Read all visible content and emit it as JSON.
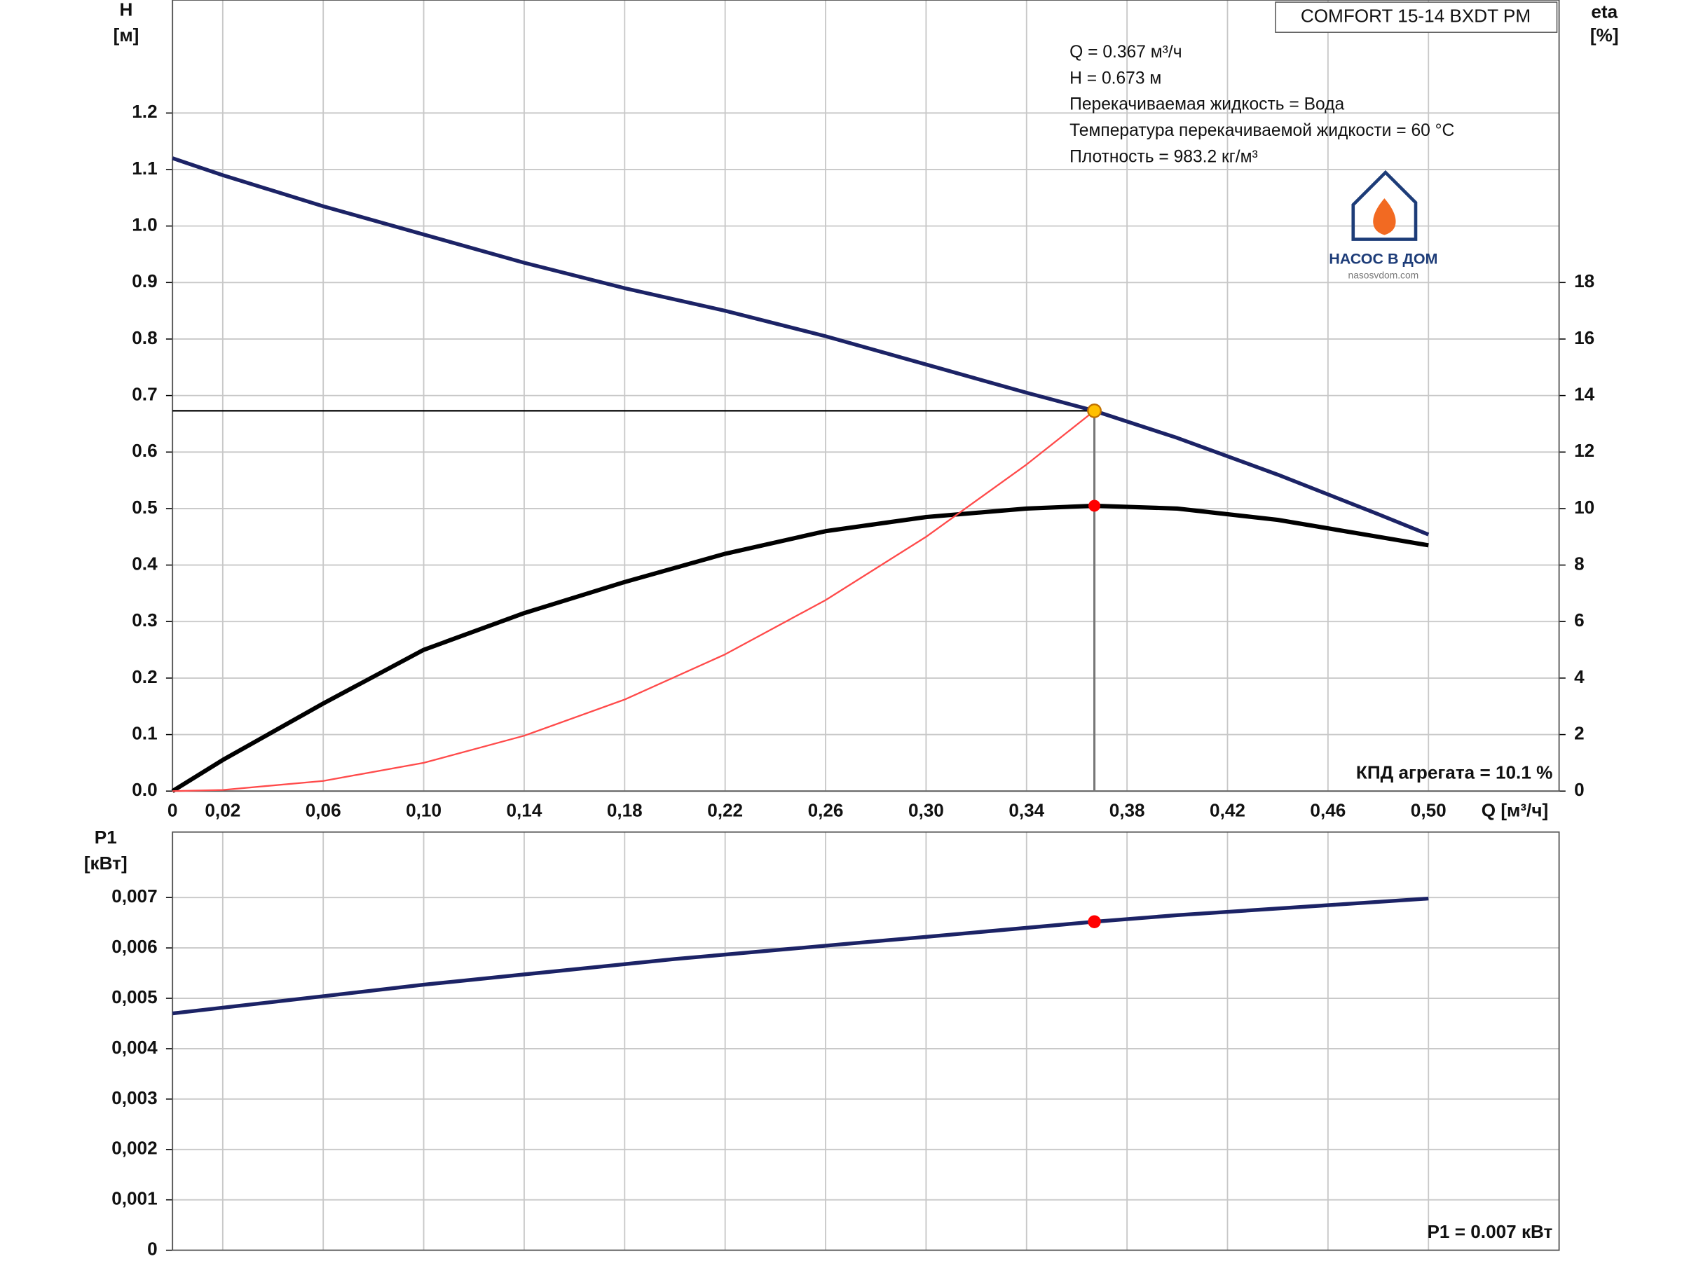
{
  "chart_data": [
    {
      "type": "line",
      "title": "COMFORT 15-14 BXDT PM",
      "info": [
        "Q = 0.367 м³/ч",
        "H = 0.673 м",
        "Перекачиваемая жидкость = Вода",
        "Температура перекачиваемой жидкости = 60 °C",
        "Плотность = 983.2 кг/м³"
      ],
      "annotation": "КПД агрегата = 10.1 %",
      "xlabel": "Q [м³/ч]",
      "ylabel": "H",
      "yunit": "[м]",
      "y2label": "eta",
      "y2unit": "[%]",
      "xlim": [
        0,
        0.552
      ],
      "ylim": [
        0,
        1.4
      ],
      "y2lim": [
        0,
        28
      ],
      "grid": true,
      "xticks": [
        0,
        {
          "value": 0.02,
          "label": "0,02"
        },
        {
          "value": 0.06,
          "label": "0,06"
        },
        {
          "value": 0.1,
          "label": "0,10"
        },
        {
          "value": 0.14,
          "label": "0,14"
        },
        {
          "value": 0.18,
          "label": "0,18"
        },
        {
          "value": 0.22,
          "label": "0,22"
        },
        {
          "value": 0.26,
          "label": "0,26"
        },
        {
          "value": 0.3,
          "label": "0,30"
        },
        {
          "value": 0.34,
          "label": "0,34"
        },
        {
          "value": 0.38,
          "label": "0,38"
        },
        {
          "value": 0.42,
          "label": "0,42"
        },
        {
          "value": 0.46,
          "label": "0,46"
        },
        {
          "value": 0.5,
          "label": "0,50"
        }
      ],
      "yticks": [
        {
          "value": 0,
          "label": "0.0"
        },
        0.1,
        0.2,
        0.3,
        0.4,
        0.5,
        0.6,
        0.7,
        0.8,
        0.9,
        {
          "value": 1,
          "label": "1.0"
        },
        1.1,
        1.2
      ],
      "y2ticks": [
        0,
        2,
        4,
        6,
        8,
        10,
        12,
        14,
        16,
        18
      ],
      "series": [
        {
          "color": "#1c2366",
          "width": 3.5,
          "x": [
            0,
            0.02,
            0.06,
            0.1,
            0.14,
            0.18,
            0.22,
            0.26,
            0.3,
            0.34,
            0.367,
            0.4,
            0.44,
            0.48,
            0.5
          ],
          "values": [
            1.12,
            1.09,
            1.035,
            0.985,
            0.935,
            0.89,
            0.85,
            0.805,
            0.755,
            0.705,
            0.673,
            0.625,
            0.56,
            0.49,
            0.454
          ]
        },
        {
          "color": "#000000",
          "width": 4,
          "axis": "y2",
          "x": [
            0,
            0.02,
            0.06,
            0.1,
            0.14,
            0.18,
            0.22,
            0.26,
            0.3,
            0.34,
            0.367,
            0.4,
            0.44,
            0.48,
            0.5
          ],
          "values": [
            0,
            1.1,
            3.1,
            5.0,
            6.3,
            7.4,
            8.4,
            9.2,
            9.7,
            10.0,
            10.1,
            10.0,
            9.6,
            9.0,
            8.7
          ]
        },
        {
          "color": "#ff4a4a",
          "width": 1.5,
          "x": [
            0,
            0.02,
            0.06,
            0.1,
            0.14,
            0.18,
            0.22,
            0.26,
            0.3,
            0.34,
            0.367
          ],
          "values": [
            0,
            0.002,
            0.018,
            0.05,
            0.098,
            0.162,
            0.242,
            0.338,
            0.45,
            0.578,
            0.673
          ]
        }
      ],
      "operating_point": {
        "x": 0.367,
        "y": 0.673,
        "y2": 10.1,
        "color": "#ffc000",
        "eta_color": "#ff0000"
      }
    },
    {
      "type": "line",
      "annotation": "P1 = 0.007 кВт",
      "ylabel": "P1",
      "yunit": "[кВт]",
      "xlim": [
        0,
        0.552
      ],
      "ylim": [
        0,
        0.0083
      ],
      "grid": true,
      "yticks": [
        0,
        {
          "value": 0.001,
          "label": "0,001"
        },
        {
          "value": 0.002,
          "label": "0,002"
        },
        {
          "value": 0.003,
          "label": "0,003"
        },
        {
          "value": 0.004,
          "label": "0,004"
        },
        {
          "value": 0.005,
          "label": "0,005"
        },
        {
          "value": 0.006,
          "label": "0,006"
        },
        {
          "value": 0.007,
          "label": "0,007"
        }
      ],
      "series": [
        {
          "color": "#1c2366",
          "width": 3.5,
          "x": [
            0,
            0.1,
            0.2,
            0.3,
            0.367,
            0.4,
            0.5
          ],
          "values": [
            0.0047,
            0.00527,
            0.00578,
            0.00622,
            0.00652,
            0.00665,
            0.00698
          ]
        }
      ],
      "operating_point": {
        "x": 0.367,
        "y": 0.00652,
        "color": "#ff0000"
      }
    }
  ],
  "logo": {
    "text": "НАСОС В ДОМ",
    "url": "nasosvdom.com"
  }
}
